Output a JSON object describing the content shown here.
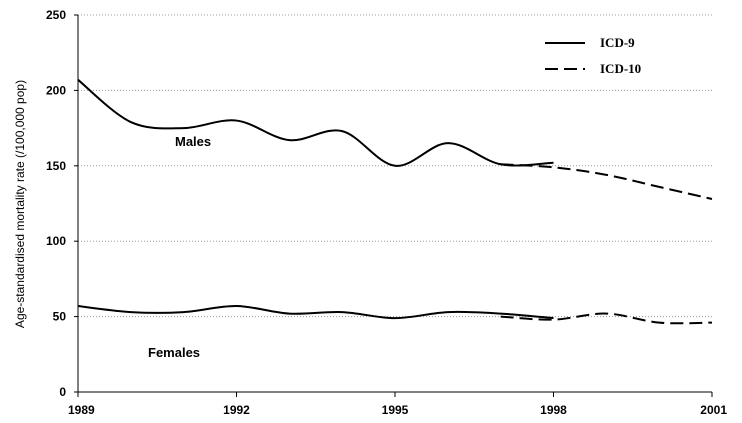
{
  "chart_data": {
    "type": "line",
    "title": "",
    "xlabel": "",
    "ylabel": "Age-standardised mortality rate (/100,000 pop)",
    "xlim": [
      1989,
      2001
    ],
    "ylim": [
      0,
      250
    ],
    "x_ticks": [
      "1989",
      "1992",
      "1995",
      "1998",
      "2001"
    ],
    "y_ticks": [
      "0",
      "50",
      "100",
      "150",
      "200",
      "250"
    ],
    "grid": "horizontal dotted",
    "legend_position": "top-right",
    "colors": {
      "line": "#000000",
      "grid": "#9a9a9a"
    },
    "legend": [
      {
        "label": "ICD-9",
        "style": "solid"
      },
      {
        "label": "ICD-10",
        "style": "dashed"
      }
    ],
    "annotations": [
      "Males",
      "Females"
    ],
    "series": [
      {
        "group": "Males",
        "legend": "ICD-9",
        "style": "solid",
        "x": [
          1989,
          1990,
          1991,
          1992,
          1993,
          1994,
          1995,
          1996,
          1997,
          1998
        ],
        "y": [
          207,
          179,
          175,
          180,
          167,
          173,
          150,
          165,
          151,
          152
        ]
      },
      {
        "group": "Males",
        "legend": "ICD-10",
        "style": "dashed",
        "x": [
          1997,
          1998,
          1999,
          2000,
          2001
        ],
        "y": [
          151,
          149,
          144,
          136,
          128
        ]
      },
      {
        "group": "Females",
        "legend": "ICD-9",
        "style": "solid",
        "x": [
          1989,
          1990,
          1991,
          1992,
          1993,
          1994,
          1995,
          1996,
          1997,
          1998
        ],
        "y": [
          57,
          53,
          53,
          57,
          52,
          53,
          49,
          53,
          52,
          49
        ]
      },
      {
        "group": "Females",
        "legend": "ICD-10",
        "style": "dashed",
        "x": [
          1997,
          1998,
          1999,
          2000,
          2001
        ],
        "y": [
          50,
          48,
          52,
          46,
          46
        ]
      }
    ]
  }
}
